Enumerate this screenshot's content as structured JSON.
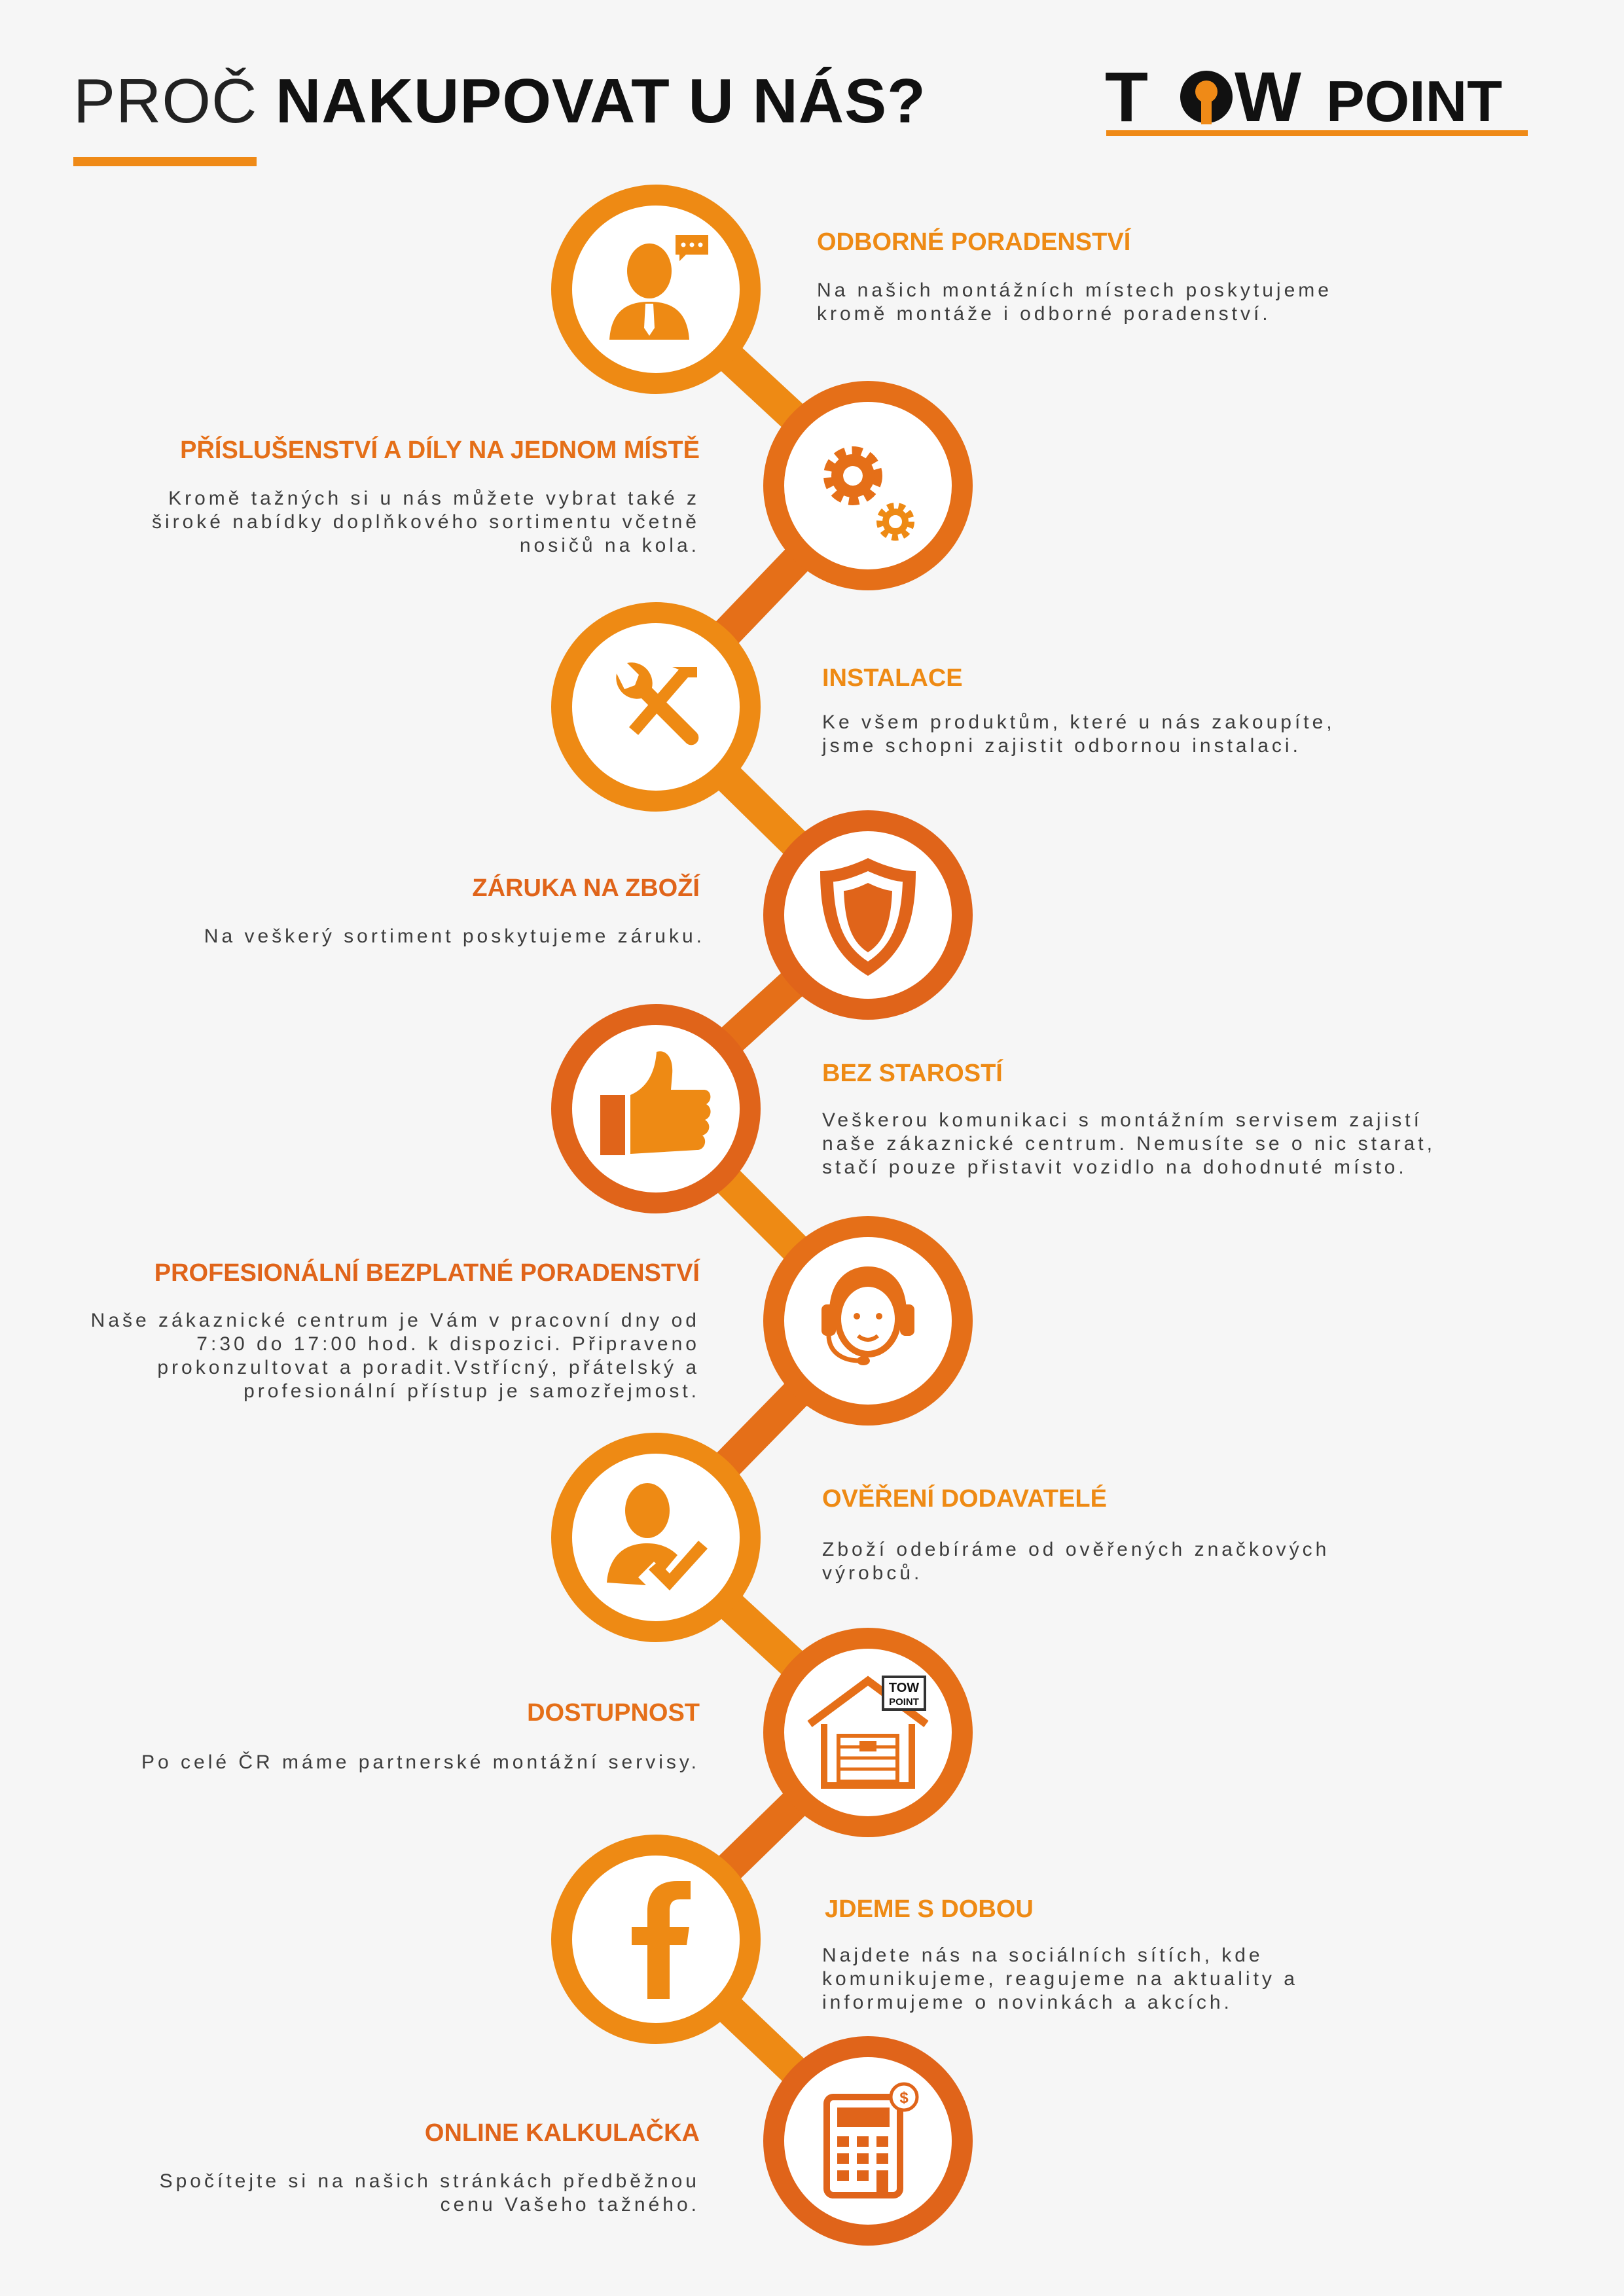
{
  "header": {
    "title_light": "PROČ",
    "title_bold": "NAKUPOVAT U NÁS?"
  },
  "logo": {
    "part1": "T",
    "part2": "W",
    "part3": "POINT"
  },
  "steps": [
    {
      "title": "ODBORNÉ PORADENSTVÍ",
      "desc": "Na našich montážních místech poskytujeme kromě montáže i odborné poradenství.",
      "icon": "consultant-icon",
      "color": "#ee8a14"
    },
    {
      "title": "PŘÍSLUŠENSTVÍ A DÍLY NA JEDNOM MÍSTĚ",
      "desc": "Kromě tažných si u nás můžete vybrat také z široké nabídky doplňkového sortimentu včetně nosičů na kola.",
      "icon": "gears-icon",
      "color": "#e56f18"
    },
    {
      "title": "INSTALACE",
      "desc": "Ke všem produktům, které u nás zakoupíte, jsme schopni zajistit odbornou instalaci.",
      "icon": "tools-icon",
      "color": "#ee8a14"
    },
    {
      "title": "ZÁRUKA NA ZBOŽÍ",
      "desc": "Na veškerý sortiment poskytujeme záruku.",
      "icon": "shield-icon",
      "color": "#e0641a"
    },
    {
      "title": "BEZ STAROSTÍ",
      "desc": "Veškerou komunikaci s montážním servisem zajistí naše zákaznické centrum. Nemusíte se o nic starat, stačí pouze přistavit vozidlo na dohodnuté místo.",
      "icon": "thumbs-up-icon",
      "color": "#ee8a14"
    },
    {
      "title": "PROFESIONÁLNÍ BEZPLATNÉ PORADENSTVÍ",
      "desc": "Naše zákaznické centrum je Vám v pracovní dny od 7:30 do 17:00 hod. k dispozici. Připraveno prokonzultovat a poradit.Vstřícný, přátelský a profesionální přístup je samozřejmost.",
      "icon": "headset-icon",
      "color": "#e0641a"
    },
    {
      "title": "OVĚŘENÍ DODAVATELÉ",
      "desc": "Zboží odebíráme od ověřených značkových výrobců.",
      "icon": "verified-user-icon",
      "color": "#ee8a14"
    },
    {
      "title": "DOSTUPNOST",
      "desc": "Po celé ČR máme partnerské montážní servisy.",
      "icon": "garage-icon",
      "color": "#e56f18"
    },
    {
      "title": "JDEME S DOBOU",
      "desc": "Najdete nás na sociálních sítích, kde komunikujeme, reagujeme na aktuality a informujeme o novinkách a akcích.",
      "icon": "facebook-icon",
      "color": "#ee8a14"
    },
    {
      "title": "ONLINE KALKULAČKA",
      "desc": "Spočítejte si na našich stránkách předběžnou cenu Vašeho tažného.",
      "icon": "calculator-icon",
      "color": "#e0641a"
    }
  ],
  "garage_sign": {
    "line1": "TOW",
    "line2": "POINT"
  },
  "colors": {
    "orange": "#ee8a14",
    "dark_orange": "#e0641a",
    "mid_orange": "#e56f18",
    "text": "#3d3d3d"
  }
}
